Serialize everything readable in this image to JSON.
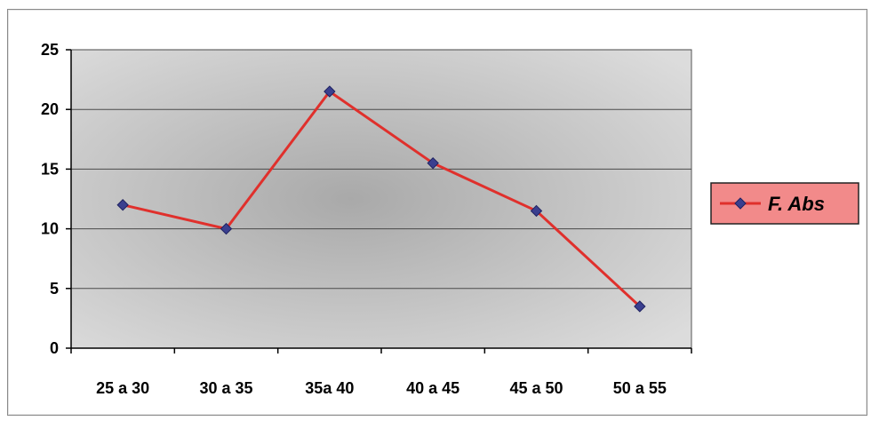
{
  "chart_data": {
    "type": "line",
    "categories": [
      "25 a 30",
      "30 a 35",
      "35a 40",
      "40 a 45",
      "45 a 50",
      "50 a 55"
    ],
    "series": [
      {
        "name": "F. Abs",
        "values": [
          12,
          10,
          21.5,
          15.5,
          11.5,
          3.5
        ]
      }
    ],
    "ylim": [
      0,
      25
    ],
    "yticks": [
      0,
      5,
      10,
      15,
      20,
      25
    ],
    "grid": true,
    "legend": "right",
    "colors": {
      "line": "#e0302c",
      "marker": "#3a3f8f",
      "plot_bg": "#c8c8c8",
      "legend_bg": "#f28a8a"
    }
  }
}
